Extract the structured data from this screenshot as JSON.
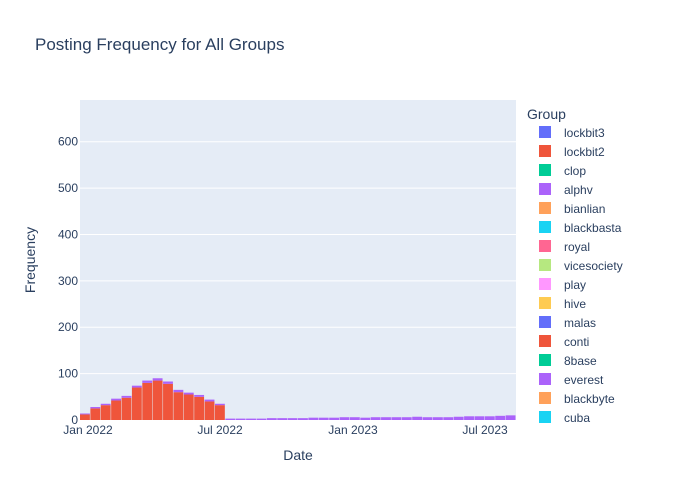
{
  "chart_data": {
    "type": "bar",
    "stacked": true,
    "title": "Posting Frequency for All Groups",
    "xlabel": "Date",
    "ylabel": "Frequency",
    "x_ticks": [
      "Jan 2022",
      "Jul 2022",
      "Jan 2023",
      "Jul 2023"
    ],
    "y_ticks": [
      0,
      100,
      200,
      300,
      400,
      500,
      600
    ],
    "ylim": [
      0,
      690
    ],
    "grid": true,
    "legend": {
      "title": "Group",
      "placement": "right",
      "visible_entries": [
        "lockbit3",
        "lockbit2",
        "clop",
        "alphv",
        "bianlian",
        "blackbasta",
        "royal",
        "vicesociety",
        "play",
        "hive",
        "malas",
        "conti",
        "8base",
        "everest",
        "blackbyte",
        "cuba"
      ]
    },
    "bin_weeks": 2,
    "start_date": "2021-12-26",
    "series": [
      {
        "name": "lockbit3",
        "color": "#636efa",
        "values": [
          0,
          0,
          0,
          0,
          0,
          0,
          0,
          0,
          0,
          0,
          0,
          0,
          0,
          0,
          0,
          0,
          0,
          0,
          0,
          0,
          0,
          0,
          0,
          0,
          0,
          0,
          0,
          0,
          0,
          0,
          0,
          0,
          0,
          0,
          0,
          0,
          0,
          0,
          0,
          0,
          0,
          0
        ]
      },
      {
        "name": "lockbit2",
        "color": "#EF553B",
        "values": [
          12,
          25,
          32,
          42,
          48,
          70,
          80,
          85,
          78,
          60,
          55,
          50,
          40,
          32,
          0,
          0,
          0,
          0,
          0,
          0,
          0,
          0,
          0,
          0,
          0,
          0,
          0,
          0,
          0,
          0,
          0,
          0,
          0,
          0,
          0,
          0,
          0,
          0,
          0,
          0,
          0,
          0
        ]
      },
      {
        "name": "clop",
        "color": "#00cc96",
        "values": [
          0,
          0,
          0,
          0,
          0,
          0,
          0,
          0,
          0,
          0,
          0,
          0,
          0,
          0,
          0,
          0,
          0,
          0,
          0,
          0,
          0,
          0,
          0,
          0,
          0,
          0,
          0,
          0,
          0,
          0,
          0,
          0,
          0,
          0,
          0,
          0,
          0,
          0,
          0,
          0,
          0,
          0
        ]
      },
      {
        "name": "alphv",
        "color": "#ab63fa",
        "values": [
          2,
          3,
          3,
          4,
          4,
          4,
          5,
          5,
          5,
          5,
          4,
          4,
          4,
          3,
          3,
          3,
          3,
          3,
          4,
          4,
          4,
          4,
          5,
          5,
          5,
          6,
          6,
          5,
          6,
          6,
          6,
          6,
          7,
          6,
          6,
          6,
          7,
          8,
          8,
          8,
          9,
          10
        ]
      },
      {
        "name": "bianlian",
        "color": "#FFA15A",
        "values": [
          0,
          0,
          0,
          0,
          0,
          0,
          0,
          0,
          0,
          0,
          0,
          0,
          0,
          0,
          0,
          0,
          0,
          0,
          0,
          0,
          0,
          0,
          0,
          0,
          0,
          0,
          0,
          0,
          0,
          0,
          0,
          0,
          0,
          0,
          0,
          0,
          0,
          0,
          0,
          0,
          0,
          0
        ]
      },
      {
        "name": "blackbasta",
        "color": "#19d3f3",
        "values": [
          0,
          0,
          0,
          0,
          0,
          0,
          0,
          0,
          0,
          0,
          0,
          0,
          0,
          0,
          0,
          0,
          0,
          0,
          0,
          0,
          0,
          0,
          0,
          0,
          0,
          0,
          0,
          0,
          0,
          0,
          0,
          0,
          0,
          0,
          0,
          0,
          0,
          0,
          0,
          0,
          0,
          0
        ]
      },
      {
        "name": "royal",
        "color": "#FF6692",
        "values": [
          0,
          0,
          0,
          0,
          0,
          0,
          0,
          0,
          0,
          0,
          0,
          0,
          0,
          0,
          0,
          0,
          0,
          0,
          0,
          0,
          0,
          0,
          0,
          0,
          0,
          0,
          0,
          0,
          0,
          0,
          0,
          0,
          0,
          0,
          0,
          0,
          0,
          0,
          0,
          0,
          0,
          0
        ]
      },
      {
        "name": "vicesociety",
        "color": "#B6E880",
        "values": [
          0,
          0,
          0,
          0,
          0,
          0,
          0,
          0,
          0,
          0,
          0,
          0,
          0,
          0,
          0,
          0,
          0,
          0,
          0,
          0,
          0,
          0,
          0,
          0,
          0,
          0,
          0,
          0,
          0,
          0,
          0,
          0,
          0,
          0,
          0,
          0,
          0,
          0,
          0,
          0,
          0,
          0
        ]
      },
      {
        "name": "play",
        "color": "#FF97FF",
        "values": [
          0,
          0,
          0,
          0,
          0,
          0,
          0,
          0,
          0,
          0,
          0,
          0,
          0,
          0,
          0,
          0,
          0,
          0,
          0,
          0,
          0,
          0,
          0,
          0,
          0,
          0,
          0,
          0,
          0,
          0,
          0,
          0,
          0,
          0,
          0,
          0,
          0,
          0,
          0,
          0,
          0,
          0
        ]
      },
      {
        "name": "hive",
        "color": "#FECB52",
        "values": [
          0,
          0,
          0,
          0,
          0,
          0,
          0,
          0,
          0,
          0,
          0,
          0,
          0,
          0,
          0,
          0,
          0,
          0,
          0,
          0,
          0,
          0,
          0,
          0,
          0,
          0,
          0,
          0,
          0,
          0,
          0,
          0,
          0,
          0,
          0,
          0,
          0,
          0,
          0,
          0,
          0,
          0
        ]
      }
    ]
  }
}
